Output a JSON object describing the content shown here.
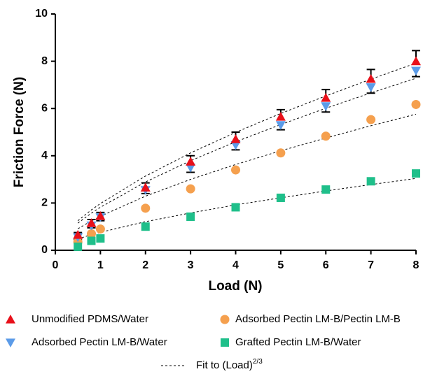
{
  "chart_data": {
    "type": "scatter",
    "x_label": "Load (N)",
    "y_label": "Friction  Force (N)",
    "x": [
      0.5,
      0.8,
      1,
      2,
      3,
      4,
      5,
      6,
      7,
      8
    ],
    "xlim": [
      0,
      8
    ],
    "xticks": [
      0,
      1,
      2,
      3,
      4,
      5,
      6,
      7,
      8
    ],
    "ylim": [
      0,
      10
    ],
    "yticks": [
      0,
      2,
      4,
      6,
      8,
      10
    ],
    "series": [
      {
        "name": "Unmodified PDMS/Water",
        "color": "#e8101a",
        "marker": "triangle-up",
        "values": [
          0.65,
          1.15,
          1.45,
          2.65,
          3.75,
          4.7,
          5.65,
          6.45,
          7.25,
          8.0
        ],
        "errors": [
          0.1,
          0.15,
          0.15,
          0.2,
          0.25,
          0.3,
          0.3,
          0.35,
          0.4,
          0.45
        ],
        "fit": [
          1.25,
          1.71,
          1.98,
          3.14,
          4.12,
          4.99,
          5.79,
          6.53,
          7.24,
          7.92
        ]
      },
      {
        "name": "Adsorbed Pectin LM-B/Pectin LM-B",
        "color": "#f5a04e",
        "marker": "circle",
        "values": [
          0.35,
          0.7,
          0.9,
          1.78,
          2.6,
          3.4,
          4.12,
          4.83,
          5.53,
          6.17
        ],
        "fit": [
          0.91,
          1.24,
          1.44,
          2.29,
          3.0,
          3.63,
          4.21,
          4.75,
          5.27,
          5.76
        ]
      },
      {
        "name": "Adsorbed Pectin LM-B/Water",
        "color": "#5b9be8",
        "marker": "triangle-down",
        "values": [
          0.55,
          1.05,
          1.4,
          2.55,
          3.5,
          4.45,
          5.3,
          6.1,
          6.9,
          7.6
        ],
        "errors": [
          0.1,
          0.1,
          0.15,
          0.15,
          0.2,
          0.2,
          0.2,
          0.25,
          0.25,
          0.25
        ],
        "fit": [
          1.15,
          1.57,
          1.82,
          2.89,
          3.79,
          4.59,
          5.32,
          6.01,
          6.66,
          7.28
        ]
      },
      {
        "name": "Grafted Pectin LM-B/Water",
        "color": "#1fbf8a",
        "marker": "square",
        "values": [
          0.15,
          0.4,
          0.5,
          1.0,
          1.42,
          1.82,
          2.22,
          2.57,
          2.92,
          3.25
        ],
        "fit": [
          0.48,
          0.66,
          0.76,
          1.21,
          1.58,
          1.92,
          2.22,
          2.51,
          2.78,
          3.04
        ]
      }
    ],
    "fit_label": "Fit to (Load)",
    "fit_label_sup": "2/3"
  }
}
